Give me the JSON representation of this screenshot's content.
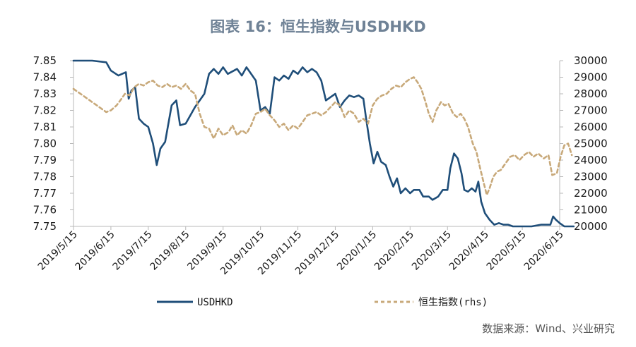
{
  "title": "图表 16：恒生指数与USDHKD",
  "source": "数据来源：Wind、兴业研究",
  "colors": {
    "usdhkd": "#1f4e79",
    "hsi": "#c8a97a",
    "title": "#6f8296"
  },
  "chart_data": {
    "type": "line",
    "title": "图表 16：恒生指数与USDHKD",
    "x_ticks": [
      "2019/5/15",
      "2019/6/15",
      "2019/7/15",
      "2019/8/15",
      "2019/9/15",
      "2019/10/15",
      "2019/11/15",
      "2019/12/15",
      "2020/1/15",
      "2020/2/15",
      "2020/3/15",
      "2020/4/15",
      "2020/5/15",
      "2020/6/15"
    ],
    "y_left": {
      "ticks": [
        "7.75",
        "7.76",
        "7.77",
        "7.78",
        "7.79",
        "7.80",
        "7.81",
        "7.82",
        "7.83",
        "7.84",
        "7.85"
      ],
      "range": [
        7.75,
        7.85
      ]
    },
    "y_right": {
      "ticks": [
        "20000",
        "21000",
        "22000",
        "23000",
        "24000",
        "25000",
        "26000",
        "27000",
        "28000",
        "29000",
        "30000"
      ],
      "range": [
        20000,
        30000
      ]
    },
    "legend": [
      "USDHKD",
      "恒生指数(rhs)"
    ],
    "series": [
      {
        "name": "USDHKD",
        "axis": "left",
        "style": "solid",
        "points": [
          [
            0,
            7.85
          ],
          [
            2,
            7.85
          ],
          [
            3.5,
            7.849
          ],
          [
            4,
            7.844
          ],
          [
            4.8,
            7.841
          ],
          [
            5.6,
            7.843
          ],
          [
            5.9,
            7.827
          ],
          [
            6.2,
            7.832
          ],
          [
            6.6,
            7.834
          ],
          [
            7,
            7.815
          ],
          [
            7.5,
            7.812
          ],
          [
            8,
            7.81
          ],
          [
            8.5,
            7.8
          ],
          [
            8.9,
            7.787
          ],
          [
            9.3,
            7.797
          ],
          [
            9.8,
            7.801
          ],
          [
            10.5,
            7.823
          ],
          [
            11,
            7.826
          ],
          [
            11.4,
            7.811
          ],
          [
            12,
            7.812
          ],
          [
            13,
            7.822
          ],
          [
            14,
            7.83
          ],
          [
            14.5,
            7.842
          ],
          [
            15,
            7.845
          ],
          [
            15.5,
            7.842
          ],
          [
            16,
            7.846
          ],
          [
            16.5,
            7.842
          ],
          [
            17.5,
            7.845
          ],
          [
            18,
            7.841
          ],
          [
            18.5,
            7.846
          ],
          [
            19,
            7.842
          ],
          [
            19.5,
            7.838
          ],
          [
            20,
            7.82
          ],
          [
            20.5,
            7.822
          ],
          [
            21,
            7.818
          ],
          [
            21.5,
            7.84
          ],
          [
            22,
            7.838
          ],
          [
            22.5,
            7.841
          ],
          [
            23,
            7.839
          ],
          [
            23.5,
            7.844
          ],
          [
            24,
            7.842
          ],
          [
            24.5,
            7.846
          ],
          [
            25,
            7.843
          ],
          [
            25.5,
            7.845
          ],
          [
            26,
            7.843
          ],
          [
            26.5,
            7.838
          ],
          [
            27,
            7.826
          ],
          [
            27.5,
            7.828
          ],
          [
            28,
            7.83
          ],
          [
            28.5,
            7.822
          ],
          [
            29,
            7.826
          ],
          [
            29.5,
            7.829
          ],
          [
            30,
            7.828
          ],
          [
            30.5,
            7.829
          ],
          [
            31,
            7.827
          ],
          [
            31.3,
            7.815
          ],
          [
            31.7,
            7.8
          ],
          [
            32.1,
            7.788
          ],
          [
            32.5,
            7.795
          ],
          [
            32.9,
            7.789
          ],
          [
            33.4,
            7.787
          ],
          [
            33.8,
            7.78
          ],
          [
            34.2,
            7.774
          ],
          [
            34.6,
            7.779
          ],
          [
            35,
            7.77
          ],
          [
            35.5,
            7.773
          ],
          [
            36,
            7.77
          ],
          [
            36.4,
            7.772
          ],
          [
            37,
            7.772
          ],
          [
            37.4,
            7.768
          ],
          [
            38,
            7.768
          ],
          [
            38.4,
            7.766
          ],
          [
            39,
            7.768
          ],
          [
            39.5,
            7.772
          ],
          [
            40,
            7.772
          ],
          [
            40.3,
            7.785
          ],
          [
            40.7,
            7.794
          ],
          [
            41.1,
            7.791
          ],
          [
            41.5,
            7.782
          ],
          [
            41.8,
            7.772
          ],
          [
            42.2,
            7.771
          ],
          [
            42.6,
            7.773
          ],
          [
            43,
            7.771
          ],
          [
            43.3,
            7.777
          ],
          [
            43.6,
            7.765
          ],
          [
            44,
            7.758
          ],
          [
            44.5,
            7.754
          ],
          [
            45,
            7.751
          ],
          [
            45.5,
            7.752
          ],
          [
            46,
            7.751
          ],
          [
            46.5,
            7.751
          ],
          [
            47,
            7.75
          ],
          [
            48,
            7.75
          ],
          [
            49,
            7.75
          ],
          [
            50,
            7.751
          ],
          [
            51,
            7.751
          ],
          [
            51.3,
            7.756
          ],
          [
            51.6,
            7.754
          ],
          [
            52,
            7.752
          ],
          [
            52.5,
            7.75
          ],
          [
            53.5,
            7.75
          ]
        ]
      },
      {
        "name": "恒生指数(rhs)",
        "axis": "right",
        "style": "dashed",
        "points": [
          [
            0,
            28300
          ],
          [
            1,
            27900
          ],
          [
            2,
            27500
          ],
          [
            3,
            27100
          ],
          [
            3.5,
            26900
          ],
          [
            4,
            27000
          ],
          [
            4.6,
            27300
          ],
          [
            5,
            27600
          ],
          [
            5.5,
            28000
          ],
          [
            6,
            27900
          ],
          [
            6.5,
            28400
          ],
          [
            7,
            28600
          ],
          [
            7.5,
            28500
          ],
          [
            8,
            28700
          ],
          [
            8.5,
            28800
          ],
          [
            9,
            28500
          ],
          [
            9.5,
            28400
          ],
          [
            10,
            28600
          ],
          [
            10.5,
            28400
          ],
          [
            11,
            28500
          ],
          [
            11.5,
            28300
          ],
          [
            12,
            28600
          ],
          [
            12.5,
            28200
          ],
          [
            13,
            28000
          ],
          [
            13.5,
            26800
          ],
          [
            14,
            26000
          ],
          [
            14.5,
            25900
          ],
          [
            15,
            25300
          ],
          [
            15.5,
            25900
          ],
          [
            16,
            25500
          ],
          [
            16.6,
            25700
          ],
          [
            17,
            26100
          ],
          [
            17.5,
            25500
          ],
          [
            18,
            25800
          ],
          [
            18.5,
            25600
          ],
          [
            19,
            26100
          ],
          [
            19.5,
            26800
          ],
          [
            20,
            26900
          ],
          [
            20.5,
            27100
          ],
          [
            21,
            26700
          ],
          [
            21.5,
            26400
          ],
          [
            22,
            26000
          ],
          [
            22.5,
            26200
          ],
          [
            23,
            25800
          ],
          [
            23.5,
            26100
          ],
          [
            24,
            25900
          ],
          [
            24.5,
            26300
          ],
          [
            25,
            26700
          ],
          [
            25.5,
            26800
          ],
          [
            26,
            26900
          ],
          [
            26.5,
            26700
          ],
          [
            27,
            26900
          ],
          [
            27.5,
            27200
          ],
          [
            28,
            27500
          ],
          [
            28.5,
            27300
          ],
          [
            29,
            26600
          ],
          [
            29.5,
            27000
          ],
          [
            30,
            26800
          ],
          [
            30.5,
            26300
          ],
          [
            31,
            26500
          ],
          [
            31.5,
            26200
          ],
          [
            32,
            27300
          ],
          [
            32.5,
            27700
          ],
          [
            33,
            27900
          ],
          [
            33.5,
            28000
          ],
          [
            34,
            28300
          ],
          [
            34.5,
            28500
          ],
          [
            35,
            28400
          ],
          [
            35.5,
            28700
          ],
          [
            36,
            28900
          ],
          [
            36.4,
            29000
          ],
          [
            36.8,
            28700
          ],
          [
            37.2,
            28300
          ],
          [
            37.6,
            27600
          ],
          [
            38,
            26800
          ],
          [
            38.4,
            26300
          ],
          [
            38.8,
            27000
          ],
          [
            39.3,
            27500
          ],
          [
            39.7,
            27300
          ],
          [
            40.1,
            27400
          ],
          [
            40.6,
            26800
          ],
          [
            41,
            26600
          ],
          [
            41.4,
            26800
          ],
          [
            41.8,
            26500
          ],
          [
            42.2,
            26000
          ],
          [
            42.7,
            25000
          ],
          [
            43.1,
            24500
          ],
          [
            43.5,
            23500
          ],
          [
            43.8,
            22800
          ],
          [
            44.2,
            21900
          ],
          [
            44.5,
            22300
          ],
          [
            44.9,
            23000
          ],
          [
            45.3,
            23300
          ],
          [
            45.7,
            23400
          ],
          [
            46.2,
            23800
          ],
          [
            46.7,
            24200
          ],
          [
            47.2,
            24300
          ],
          [
            47.7,
            24000
          ],
          [
            48.2,
            24300
          ],
          [
            48.7,
            24500
          ],
          [
            49.2,
            24200
          ],
          [
            49.7,
            24400
          ],
          [
            50.3,
            24100
          ],
          [
            50.8,
            24300
          ],
          [
            51.2,
            23100
          ],
          [
            51.7,
            23200
          ],
          [
            52.1,
            24200
          ],
          [
            52.5,
            24900
          ],
          [
            52.9,
            25000
          ],
          [
            53.3,
            24300
          ]
        ]
      }
    ]
  }
}
